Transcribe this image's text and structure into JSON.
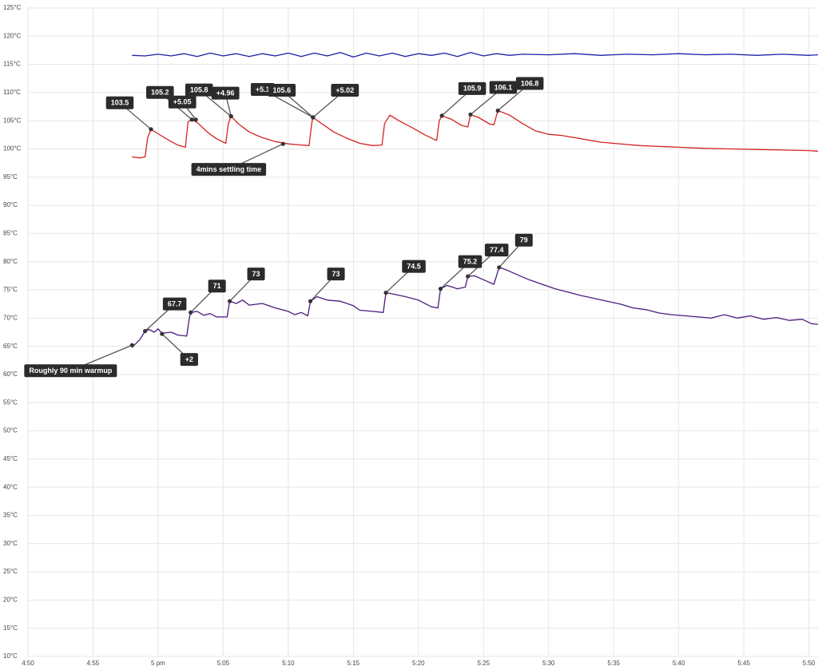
{
  "chart_data": {
    "type": "line",
    "xlim": [
      0,
      60.7
    ],
    "xticks": [
      {
        "value": 0,
        "label": "4:50"
      },
      {
        "value": 5,
        "label": "4:55"
      },
      {
        "value": 10,
        "label": "5 pm"
      },
      {
        "value": 15,
        "label": "5:05"
      },
      {
        "value": 20,
        "label": "5:10"
      },
      {
        "value": 25,
        "label": "5:15"
      },
      {
        "value": 30,
        "label": "5:20"
      },
      {
        "value": 35,
        "label": "5:25"
      },
      {
        "value": 40,
        "label": "5:30"
      },
      {
        "value": 45,
        "label": "5:35"
      },
      {
        "value": 50,
        "label": "5:40"
      },
      {
        "value": 55,
        "label": "5:45"
      },
      {
        "value": 60,
        "label": "5:50"
      }
    ],
    "ylim": [
      10,
      125
    ],
    "yticks": [
      {
        "value": 10,
        "label": "10°C"
      },
      {
        "value": 15,
        "label": "15°C"
      },
      {
        "value": 20,
        "label": "20°C"
      },
      {
        "value": 25,
        "label": "25°C"
      },
      {
        "value": 30,
        "label": "30°C"
      },
      {
        "value": 35,
        "label": "35°C"
      },
      {
        "value": 40,
        "label": "40°C"
      },
      {
        "value": 45,
        "label": "45°C"
      },
      {
        "value": 50,
        "label": "50°C"
      },
      {
        "value": 55,
        "label": "55°C"
      },
      {
        "value": 60,
        "label": "60°C"
      },
      {
        "value": 65,
        "label": "65°C"
      },
      {
        "value": 70,
        "label": "70°C"
      },
      {
        "value": 75,
        "label": "75°C"
      },
      {
        "value": 80,
        "label": "80°C"
      },
      {
        "value": 85,
        "label": "85°C"
      },
      {
        "value": 90,
        "label": "90°C"
      },
      {
        "value": 95,
        "label": "95°C"
      },
      {
        "value": 100,
        "label": "100°C"
      },
      {
        "value": 105,
        "label": "105°C"
      },
      {
        "value": 110,
        "label": "110°C"
      },
      {
        "value": 115,
        "label": "115°C"
      },
      {
        "value": 120,
        "label": "120°C"
      },
      {
        "value": 125,
        "label": "125°C"
      }
    ],
    "grid": true,
    "series": [
      {
        "color": "#1f1fa8",
        "x": [
          8,
          9,
          10,
          11,
          12,
          13,
          14,
          15,
          16,
          17,
          18,
          19,
          20,
          21,
          22,
          23,
          24,
          25,
          26,
          27,
          28,
          29,
          30,
          31,
          32,
          33,
          34,
          35,
          36,
          37,
          38,
          40,
          42,
          44,
          46,
          48,
          50,
          52,
          54,
          56,
          58,
          60,
          60.7
        ],
        "values": [
          116.6,
          116.5,
          116.8,
          116.5,
          116.9,
          116.4,
          117.0,
          116.5,
          116.9,
          116.4,
          116.9,
          116.5,
          117.0,
          116.4,
          117.0,
          116.5,
          117.1,
          116.3,
          117.0,
          116.5,
          117.0,
          116.4,
          116.9,
          116.6,
          117.0,
          116.4,
          117.1,
          116.5,
          116.9,
          116.6,
          116.8,
          116.7,
          116.9,
          116.6,
          116.8,
          116.7,
          116.9,
          116.7,
          116.8,
          116.6,
          116.8,
          116.6,
          116.7
        ]
      },
      {
        "color": "#d42222",
        "x": [
          8,
          8.6,
          9.0,
          9.2,
          9.45,
          10,
          10.5,
          11,
          11.5,
          12.1,
          12.3,
          12.6,
          13,
          13.5,
          14,
          14.5,
          15.2,
          15.4,
          15.6,
          16.2,
          17,
          18,
          19,
          20,
          21,
          21.6,
          21.8,
          21.9,
          22.5,
          23.5,
          24.5,
          25.5,
          26.5,
          27.2,
          27.4,
          27.8,
          28.5,
          29.5,
          30.5,
          31.4,
          31.6,
          31.8,
          32.5,
          33.3,
          33.8,
          34.0,
          34.6,
          35.5,
          35.8,
          36.1,
          37,
          38,
          39,
          40,
          41,
          42,
          43,
          44,
          45,
          46,
          47,
          48,
          49,
          50,
          52,
          54,
          56,
          58,
          60,
          60.7
        ],
        "values": [
          98.6,
          98.4,
          98.6,
          102.0,
          103.5,
          102.7,
          102.0,
          101.3,
          100.7,
          100.3,
          104.8,
          105.2,
          104.7,
          103.6,
          102.6,
          101.8,
          101.0,
          104.5,
          105.8,
          104.4,
          103.0,
          102.0,
          101.3,
          100.9,
          100.7,
          100.6,
          104.5,
          105.6,
          104.6,
          103.0,
          101.9,
          101.0,
          100.6,
          100.7,
          104.5,
          106.0,
          105.0,
          103.8,
          102.5,
          101.5,
          105.0,
          105.9,
          105.3,
          104.2,
          103.9,
          106.1,
          105.6,
          104.4,
          104.3,
          106.8,
          106.0,
          104.5,
          103.2,
          102.6,
          102.4,
          102.0,
          101.6,
          101.2,
          101.0,
          100.8,
          100.6,
          100.5,
          100.4,
          100.3,
          100.1,
          100.0,
          99.9,
          99.8,
          99.7,
          99.6
        ]
      },
      {
        "color": "#4b1b7e",
        "x": [
          8,
          8.3,
          8.6,
          9.0,
          9.3,
          9.7,
          10.0,
          10.3,
          11,
          11.5,
          12.2,
          12.4,
          12.5,
          13,
          13.5,
          14,
          14.5,
          15.3,
          15.5,
          16,
          16.5,
          17,
          18,
          19,
          20,
          20.5,
          21,
          21.5,
          21.7,
          22.2,
          23,
          24,
          25,
          25.5,
          26.5,
          27.3,
          27.5,
          28,
          29,
          30,
          31,
          31.5,
          31.7,
          32.2,
          33,
          33.6,
          33.8,
          34.3,
          35,
          35.8,
          36.2,
          36.7,
          37.5,
          38.5,
          39.5,
          40.5,
          41.5,
          42.5,
          43.5,
          44.5,
          45.5,
          46.5,
          47.5,
          48.5,
          49.5,
          50.5,
          51.5,
          52.5,
          53.5,
          54.5,
          55.5,
          56.5,
          57.5,
          58.5,
          59.5,
          60.2,
          60.7
        ],
        "values": [
          64.8,
          65.5,
          66.2,
          67.7,
          68.0,
          67.5,
          68.1,
          67.3,
          67.5,
          67.0,
          66.8,
          70.0,
          71.0,
          71.2,
          70.5,
          70.8,
          70.2,
          70.2,
          73.0,
          72.6,
          73.2,
          72.3,
          72.6,
          71.8,
          71.2,
          70.6,
          71.0,
          70.4,
          73.0,
          73.8,
          73.2,
          73.0,
          72.2,
          71.4,
          71.2,
          71.0,
          74.5,
          74.3,
          73.8,
          73.2,
          72.0,
          71.8,
          75.2,
          75.8,
          75.2,
          75.5,
          77.4,
          77.5,
          76.8,
          76.0,
          79.0,
          78.6,
          77.8,
          76.8,
          76.0,
          75.2,
          74.6,
          74.0,
          73.5,
          73.0,
          72.5,
          71.8,
          71.5,
          70.9,
          70.6,
          70.4,
          70.2,
          70.0,
          70.6,
          70.0,
          70.4,
          69.8,
          70.1,
          69.6,
          69.8,
          69.0,
          68.9
        ]
      }
    ],
    "annotations": [
      {
        "text": "Roughly 90 min warmup",
        "x": 8.0,
        "y": 65.2
      },
      {
        "text": "67.7",
        "x": 9.0,
        "y": 67.7
      },
      {
        "text": "+2",
        "x": 10.3,
        "y": 67.2
      },
      {
        "text": "71",
        "x": 12.5,
        "y": 71
      },
      {
        "text": "73",
        "x": 15.5,
        "y": 73
      },
      {
        "text": "73",
        "x": 21.7,
        "y": 73
      },
      {
        "text": "74.5",
        "x": 27.5,
        "y": 74.5
      },
      {
        "text": "75.2",
        "x": 31.7,
        "y": 75.2
      },
      {
        "text": "77.4",
        "x": 33.8,
        "y": 77.4
      },
      {
        "text": "79",
        "x": 36.2,
        "y": 79
      },
      {
        "text": "103.5",
        "x": 9.45,
        "y": 103.5
      },
      {
        "text": "105.2",
        "x": 12.6,
        "y": 105.2
      },
      {
        "text": "+5.05",
        "x": 12.9,
        "y": 105.2
      },
      {
        "text": "105.8",
        "x": 15.6,
        "y": 105.8
      },
      {
        "text": "+4.96",
        "x": 15.6,
        "y": 105.8
      },
      {
        "text": "+5.1",
        "x": 21.9,
        "y": 105.6
      },
      {
        "text": "105.6",
        "x": 21.9,
        "y": 105.6
      },
      {
        "text": "+5.02",
        "x": 21.9,
        "y": 105.6
      },
      {
        "text": "4mins settling time",
        "x": 19.6,
        "y": 100.9
      },
      {
        "text": "105.9",
        "x": 31.8,
        "y": 105.9
      },
      {
        "text": "106.1",
        "x": 34.0,
        "y": 106.1
      },
      {
        "text": "106.8",
        "x": 36.1,
        "y": 106.8
      }
    ]
  }
}
